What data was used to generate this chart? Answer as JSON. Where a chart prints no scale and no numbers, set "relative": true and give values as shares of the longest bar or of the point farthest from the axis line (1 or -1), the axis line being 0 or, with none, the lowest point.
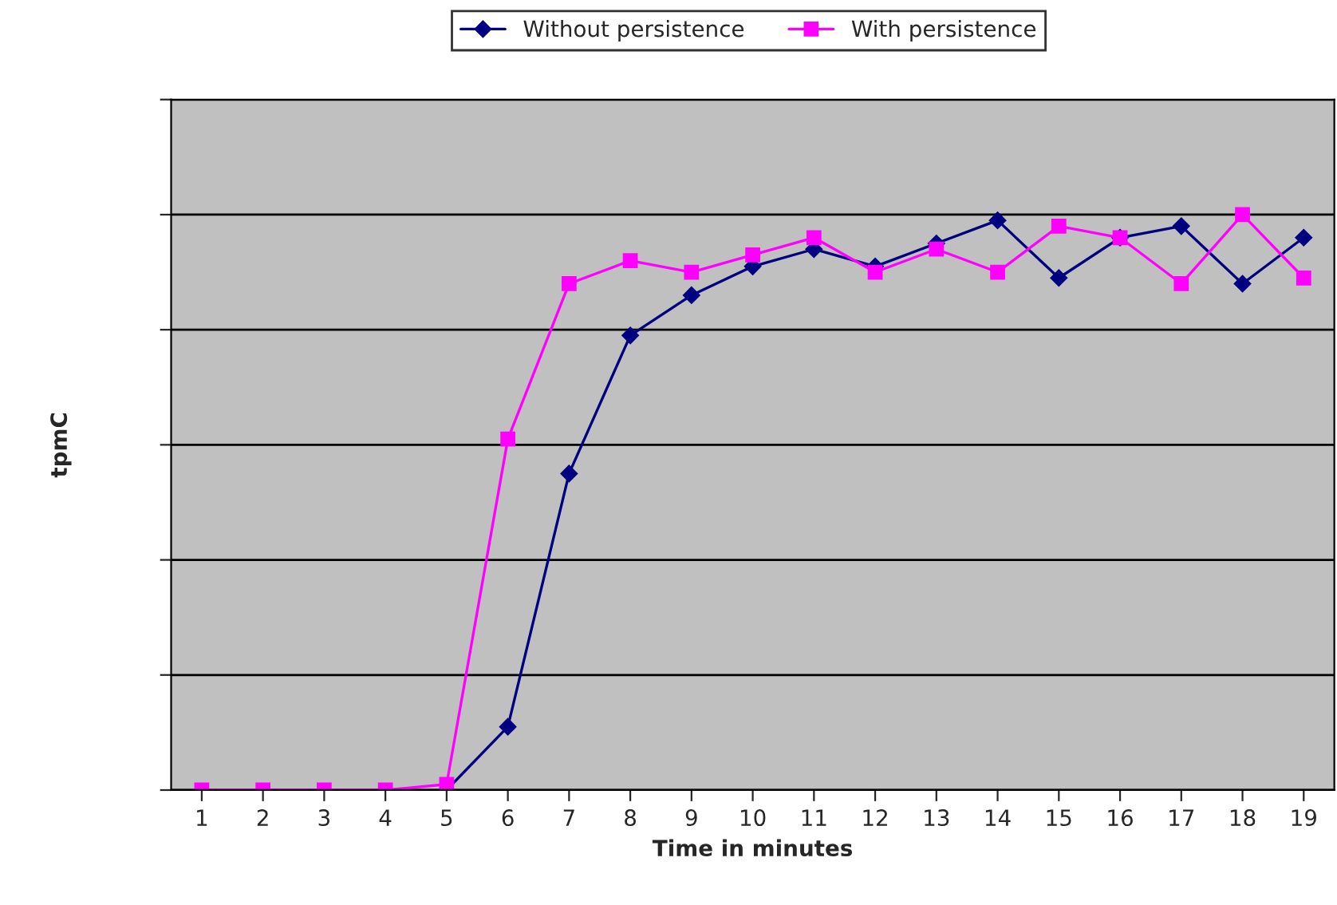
{
  "chart_data": {
    "type": "line",
    "relative": true,
    "xlabel": "Time in minutes",
    "ylabel": "tpmC",
    "categories": [
      "1",
      "2",
      "3",
      "4",
      "5",
      "6",
      "7",
      "8",
      "9",
      "10",
      "11",
      "12",
      "13",
      "14",
      "15",
      "16",
      "17",
      "18",
      "19"
    ],
    "series": [
      {
        "name": "Without persistence",
        "color": "#000080",
        "marker": "diamond",
        "values": [
          null,
          null,
          null,
          null,
          0,
          0.11,
          0.55,
          0.79,
          0.86,
          0.91,
          0.94,
          0.91,
          0.95,
          0.99,
          0.89,
          0.96,
          0.98,
          0.88,
          0.96
        ]
      },
      {
        "name": "With persistence",
        "color": "#ff00ff",
        "marker": "square",
        "values": [
          0,
          0,
          0,
          0,
          0.01,
          0.61,
          0.88,
          0.92,
          0.9,
          0.93,
          0.96,
          0.9,
          0.94,
          0.9,
          0.98,
          0.96,
          0.88,
          1,
          0.89
        ]
      }
    ],
    "grid": "y",
    "legend": "top",
    "tick_labels": "x"
  }
}
